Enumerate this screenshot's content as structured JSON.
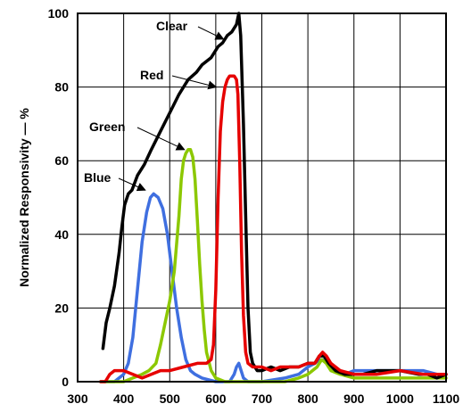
{
  "chart_data": {
    "type": "line",
    "title": "",
    "xlabel": "",
    "ylabel": "Normalized Responsivity — %",
    "xlim": [
      300,
      1100
    ],
    "ylim": [
      0,
      100
    ],
    "grid": true,
    "x_ticks": [
      300,
      400,
      500,
      600,
      700,
      800,
      900,
      1000,
      1100
    ],
    "y_ticks": [
      0,
      20,
      40,
      60,
      80,
      100
    ],
    "series": [
      {
        "name": "Clear",
        "color": "#000000",
        "points": [
          [
            355,
            9
          ],
          [
            362,
            16
          ],
          [
            370,
            20
          ],
          [
            380,
            26
          ],
          [
            390,
            35
          ],
          [
            396,
            42
          ],
          [
            402,
            48
          ],
          [
            410,
            51
          ],
          [
            418,
            52
          ],
          [
            430,
            56
          ],
          [
            445,
            59
          ],
          [
            460,
            63
          ],
          [
            480,
            68
          ],
          [
            500,
            73
          ],
          [
            520,
            78
          ],
          [
            540,
            82
          ],
          [
            558,
            84
          ],
          [
            570,
            86
          ],
          [
            590,
            88
          ],
          [
            605,
            91
          ],
          [
            615,
            92
          ],
          [
            625,
            94
          ],
          [
            635,
            95
          ],
          [
            645,
            97
          ],
          [
            650,
            100
          ],
          [
            654,
            94
          ],
          [
            660,
            70
          ],
          [
            665,
            45
          ],
          [
            670,
            20
          ],
          [
            675,
            8
          ],
          [
            680,
            5
          ],
          [
            690,
            3
          ],
          [
            700,
            3
          ],
          [
            720,
            4
          ],
          [
            740,
            3
          ],
          [
            760,
            4
          ],
          [
            780,
            4
          ],
          [
            800,
            5
          ],
          [
            815,
            5
          ],
          [
            825,
            7
          ],
          [
            835,
            7
          ],
          [
            845,
            5
          ],
          [
            860,
            3
          ],
          [
            880,
            2
          ],
          [
            900,
            2
          ],
          [
            920,
            2
          ],
          [
            950,
            3
          ],
          [
            1000,
            3
          ],
          [
            1040,
            2
          ],
          [
            1060,
            2
          ],
          [
            1080,
            1
          ],
          [
            1100,
            2
          ]
        ]
      },
      {
        "name": "Red",
        "color": "#e60000",
        "points": [
          [
            350,
            0
          ],
          [
            360,
            0
          ],
          [
            370,
            2
          ],
          [
            380,
            3
          ],
          [
            390,
            3
          ],
          [
            400,
            3
          ],
          [
            420,
            2
          ],
          [
            440,
            1
          ],
          [
            460,
            2
          ],
          [
            480,
            3
          ],
          [
            500,
            3
          ],
          [
            530,
            4
          ],
          [
            560,
            5
          ],
          [
            580,
            5
          ],
          [
            590,
            6
          ],
          [
            595,
            10
          ],
          [
            600,
            25
          ],
          [
            605,
            50
          ],
          [
            610,
            68
          ],
          [
            615,
            76
          ],
          [
            620,
            80
          ],
          [
            625,
            82
          ],
          [
            630,
            83
          ],
          [
            640,
            83
          ],
          [
            645,
            82
          ],
          [
            648,
            78
          ],
          [
            652,
            60
          ],
          [
            656,
            35
          ],
          [
            660,
            18
          ],
          [
            665,
            8
          ],
          [
            670,
            5
          ],
          [
            680,
            4
          ],
          [
            700,
            4
          ],
          [
            720,
            3
          ],
          [
            740,
            4
          ],
          [
            760,
            4
          ],
          [
            780,
            4
          ],
          [
            800,
            5
          ],
          [
            815,
            5
          ],
          [
            825,
            7
          ],
          [
            832,
            8
          ],
          [
            840,
            7
          ],
          [
            850,
            5
          ],
          [
            870,
            3
          ],
          [
            900,
            2
          ],
          [
            950,
            2
          ],
          [
            1000,
            3
          ],
          [
            1050,
            2
          ],
          [
            1100,
            2
          ]
        ]
      },
      {
        "name": "Green",
        "color": "#8cc800",
        "points": [
          [
            350,
            0
          ],
          [
            400,
            0
          ],
          [
            420,
            1
          ],
          [
            440,
            2
          ],
          [
            455,
            3
          ],
          [
            470,
            5
          ],
          [
            480,
            10
          ],
          [
            490,
            16
          ],
          [
            500,
            22
          ],
          [
            510,
            30
          ],
          [
            520,
            45
          ],
          [
            525,
            55
          ],
          [
            530,
            60
          ],
          [
            535,
            62
          ],
          [
            540,
            63
          ],
          [
            545,
            63
          ],
          [
            550,
            61
          ],
          [
            555,
            55
          ],
          [
            560,
            44
          ],
          [
            565,
            32
          ],
          [
            570,
            22
          ],
          [
            575,
            14
          ],
          [
            580,
            8
          ],
          [
            590,
            3
          ],
          [
            600,
            1
          ],
          [
            620,
            0
          ],
          [
            650,
            0
          ],
          [
            700,
            0
          ],
          [
            750,
            0
          ],
          [
            780,
            1
          ],
          [
            800,
            2
          ],
          [
            820,
            4
          ],
          [
            830,
            6
          ],
          [
            840,
            5
          ],
          [
            850,
            3
          ],
          [
            870,
            2
          ],
          [
            900,
            1
          ],
          [
            1000,
            1
          ],
          [
            1100,
            1
          ]
        ]
      },
      {
        "name": "Blue",
        "color": "#3f6fe0",
        "points": [
          [
            350,
            0
          ],
          [
            380,
            0
          ],
          [
            400,
            2
          ],
          [
            410,
            5
          ],
          [
            420,
            12
          ],
          [
            430,
            25
          ],
          [
            440,
            38
          ],
          [
            450,
            46
          ],
          [
            458,
            50
          ],
          [
            465,
            51
          ],
          [
            475,
            50
          ],
          [
            485,
            47
          ],
          [
            495,
            40
          ],
          [
            505,
            30
          ],
          [
            515,
            20
          ],
          [
            525,
            12
          ],
          [
            535,
            6
          ],
          [
            545,
            3
          ],
          [
            555,
            2
          ],
          [
            570,
            1
          ],
          [
            600,
            0
          ],
          [
            630,
            0
          ],
          [
            640,
            2
          ],
          [
            645,
            4
          ],
          [
            650,
            5
          ],
          [
            655,
            3
          ],
          [
            660,
            1
          ],
          [
            670,
            0
          ],
          [
            700,
            0
          ],
          [
            750,
            1
          ],
          [
            780,
            2
          ],
          [
            800,
            4
          ],
          [
            815,
            5
          ],
          [
            825,
            6
          ],
          [
            835,
            6
          ],
          [
            845,
            4
          ],
          [
            860,
            3
          ],
          [
            880,
            2
          ],
          [
            900,
            3
          ],
          [
            950,
            3
          ],
          [
            1000,
            3
          ],
          [
            1050,
            3
          ],
          [
            1080,
            2
          ],
          [
            1100,
            2
          ]
        ]
      }
    ],
    "annotations": [
      {
        "text": "Clear",
        "arrow_to": [
          617,
          93
        ]
      },
      {
        "text": "Red",
        "arrow_to": [
          601,
          80
        ]
      },
      {
        "text": "Green",
        "arrow_to": [
          532,
          63
        ]
      },
      {
        "text": "Blue",
        "arrow_to": [
          447,
          52
        ]
      }
    ]
  }
}
